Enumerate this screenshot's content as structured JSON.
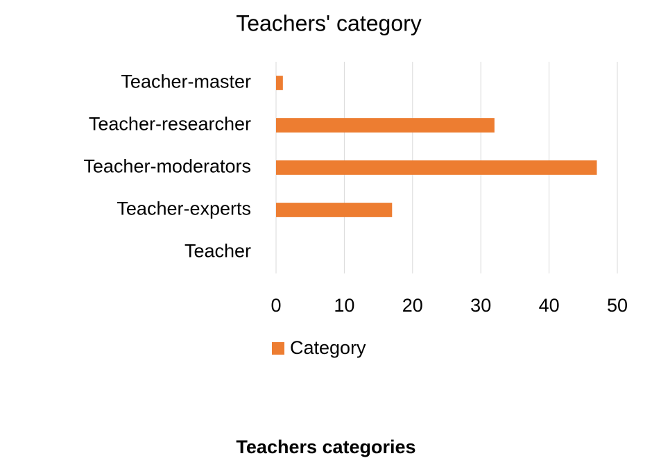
{
  "chart_data": {
    "type": "bar",
    "orientation": "horizontal",
    "title": "Teachers' category",
    "categories": [
      "Teacher-master",
      "Teacher-researcher",
      "Teacher-moderators",
      "Teacher-experts",
      "Teacher"
    ],
    "series": [
      {
        "name": "Category",
        "color": "#ed7d31",
        "values": [
          1,
          32,
          47,
          17,
          0
        ]
      }
    ],
    "xlim": [
      0,
      50
    ],
    "xticks": [
      0,
      10,
      20,
      30,
      40,
      50
    ],
    "grid": true,
    "legend": "bottom"
  },
  "caption": "Teachers categories"
}
